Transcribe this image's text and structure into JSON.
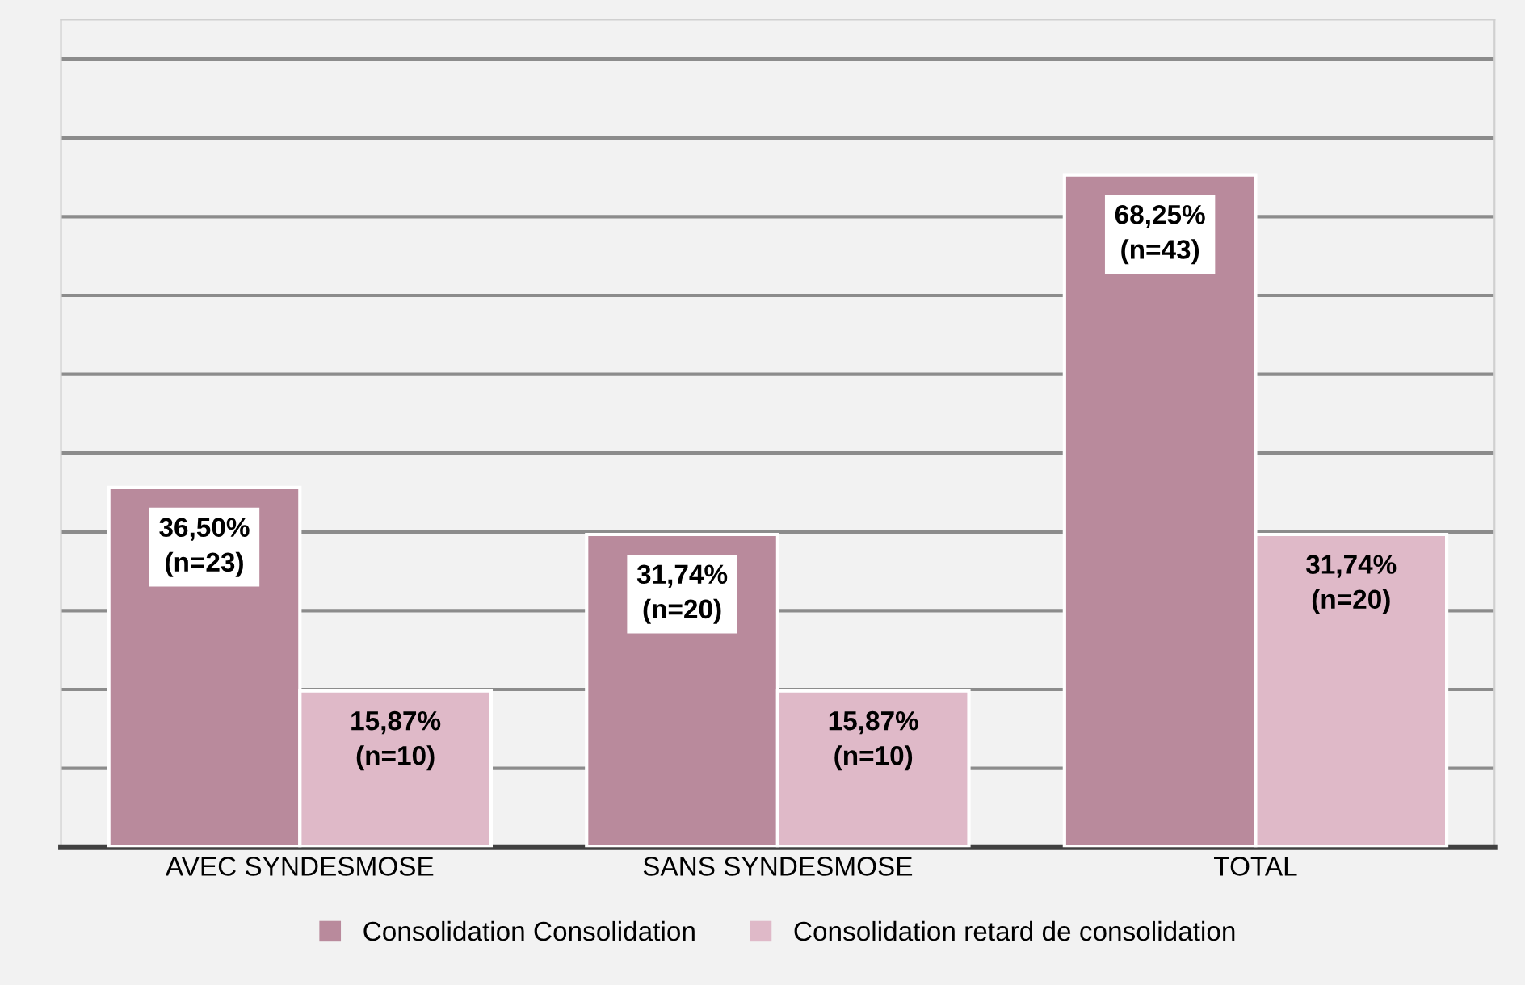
{
  "chart_data": {
    "type": "bar",
    "categories": [
      "AVEC SYNDESMOSE",
      "SANS SYNDESMOSE",
      "TOTAL"
    ],
    "series": [
      {
        "name": "Consolidation Consolidation",
        "color": "#b98a9c",
        "values": [
          36.5,
          31.74,
          68.25
        ],
        "value_labels": [
          "36,50%\n(n=23)",
          "31,74%\n(n=20)",
          "68,25%\n(n=43)"
        ]
      },
      {
        "name": "Consolidation retard de consolidation",
        "color": "#dfb9c8",
        "values": [
          15.87,
          15.87,
          31.74
        ],
        "value_labels": [
          "15,87%\n(n=10)",
          "15,87%\n(n=10)",
          "31,74%\n(n=20)"
        ]
      }
    ],
    "ylim": [
      0,
      84
    ],
    "yticks": [
      {
        "value": 8,
        "label": null
      },
      {
        "value": 16,
        "label": null
      },
      {
        "value": 24,
        "label": null
      },
      {
        "value": 32,
        "label": null
      },
      {
        "value": 40,
        "label": null
      },
      {
        "value": 48,
        "label": null
      },
      {
        "value": 56,
        "label": null
      },
      {
        "value": 64,
        "label": null
      },
      {
        "value": 72,
        "label": null
      },
      {
        "value": 80,
        "label": null
      }
    ],
    "grid": "y",
    "legend": "bottom",
    "tick_labels": "x"
  }
}
